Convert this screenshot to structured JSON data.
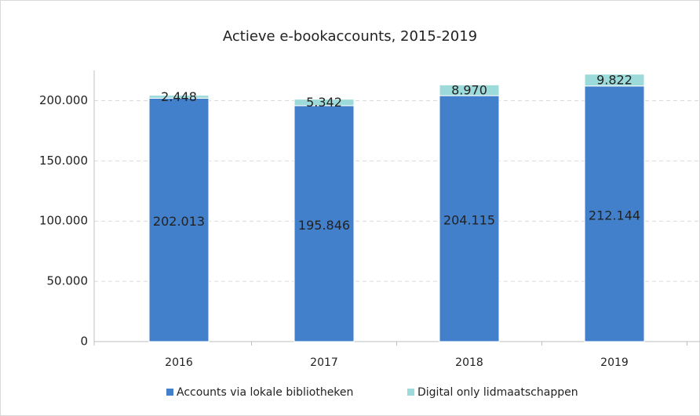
{
  "chart_data": {
    "type": "stacked_bar",
    "title": "Actieve e-bookaccounts, 2015-2019",
    "categories": [
      "2016",
      "2017",
      "2018",
      "2019"
    ],
    "series": [
      {
        "name": "Accounts via lokale bibliotheken",
        "color": "#4380cb",
        "values": [
          202013,
          195846,
          204115,
          212144
        ],
        "value_labels": [
          "202.013",
          "195.846",
          "204.115",
          "212.144"
        ]
      },
      {
        "name": "Digital only lidmaatschappen",
        "color": "#9ddada",
        "values": [
          2448,
          5342,
          8970,
          9822
        ],
        "value_labels": [
          "2.448",
          "5.342",
          "8.970",
          "9.822"
        ]
      }
    ],
    "ylim": [
      0,
      225000
    ],
    "yticks": [
      0,
      {
        "value": 50000,
        "label": "50.000"
      },
      {
        "value": 100000,
        "label": "100.000"
      },
      {
        "value": 150000,
        "label": "150.000"
      },
      {
        "value": 200000,
        "label": "200.000"
      }
    ],
    "grid": true,
    "legend": "bottom"
  }
}
